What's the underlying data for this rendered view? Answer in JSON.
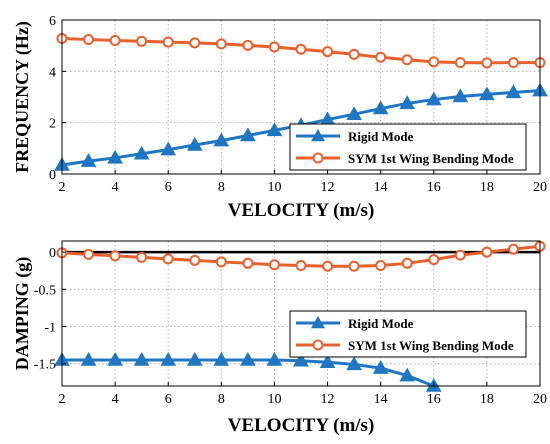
{
  "chart_data": [
    {
      "type": "line",
      "xlabel": "VELOCITY (m/s)",
      "ylabel": "FREQUENCY (Hz)",
      "xlim": [
        2,
        20
      ],
      "ylim": [
        0,
        6
      ],
      "xticks": [
        2,
        4,
        6,
        8,
        10,
        12,
        14,
        16,
        18,
        20
      ],
      "yticks": [
        0,
        2,
        4,
        6
      ],
      "grid": true,
      "legend_position": "bottom-right",
      "series": [
        {
          "name": "Rigid Mode",
          "color": "#1f77c4",
          "marker": "triangle",
          "x": [
            2,
            3,
            4,
            5,
            6,
            7,
            8,
            9,
            10,
            11,
            12,
            13,
            14,
            15,
            16,
            17,
            18,
            19,
            20
          ],
          "y": [
            0.35,
            0.5,
            0.63,
            0.79,
            0.95,
            1.13,
            1.3,
            1.5,
            1.7,
            1.9,
            2.12,
            2.33,
            2.55,
            2.75,
            2.9,
            3.02,
            3.1,
            3.18,
            3.25
          ]
        },
        {
          "name": "SYM 1st Wing Bending Mode",
          "color": "#e8612c",
          "marker": "circle",
          "x": [
            2,
            3,
            4,
            5,
            6,
            7,
            8,
            9,
            10,
            11,
            12,
            13,
            14,
            15,
            16,
            17,
            18,
            19,
            20
          ],
          "y": [
            5.28,
            5.24,
            5.2,
            5.17,
            5.14,
            5.11,
            5.07,
            5.01,
            4.95,
            4.86,
            4.77,
            4.66,
            4.55,
            4.45,
            4.37,
            4.34,
            4.33,
            4.34,
            4.34
          ]
        }
      ]
    },
    {
      "type": "line",
      "xlabel": "VELOCITY (m/s)",
      "ylabel": "DAMPING (g)",
      "xlim": [
        2,
        20
      ],
      "ylim": [
        -1.8,
        0.15
      ],
      "xticks": [
        2,
        4,
        6,
        8,
        10,
        12,
        14,
        16,
        18,
        20
      ],
      "yticks": [
        0,
        -0.5,
        -1,
        -1.5
      ],
      "ytick_labels": [
        "0",
        "-0.5",
        "-1",
        "-1.5"
      ],
      "grid": true,
      "zero_line": true,
      "legend_position": "top-right",
      "series": [
        {
          "name": "Rigid Mode",
          "color": "#1f77c4",
          "marker": "triangle",
          "x": [
            2,
            3,
            4,
            5,
            6,
            7,
            8,
            9,
            10,
            11,
            12,
            13,
            14,
            15,
            16
          ],
          "y": [
            -1.45,
            -1.45,
            -1.45,
            -1.45,
            -1.45,
            -1.45,
            -1.45,
            -1.45,
            -1.45,
            -1.46,
            -1.48,
            -1.51,
            -1.56,
            -1.66,
            -1.8
          ]
        },
        {
          "name": "SYM 1st Wing Bending Mode",
          "color": "#e8612c",
          "marker": "circle",
          "x": [
            2,
            3,
            4,
            5,
            6,
            7,
            8,
            9,
            10,
            11,
            12,
            13,
            14,
            15,
            16,
            17,
            18,
            19,
            20
          ],
          "y": [
            -0.01,
            -0.03,
            -0.05,
            -0.07,
            -0.09,
            -0.11,
            -0.13,
            -0.15,
            -0.17,
            -0.18,
            -0.19,
            -0.19,
            -0.18,
            -0.15,
            -0.1,
            -0.04,
            0.0,
            0.04,
            0.08
          ]
        }
      ]
    }
  ]
}
